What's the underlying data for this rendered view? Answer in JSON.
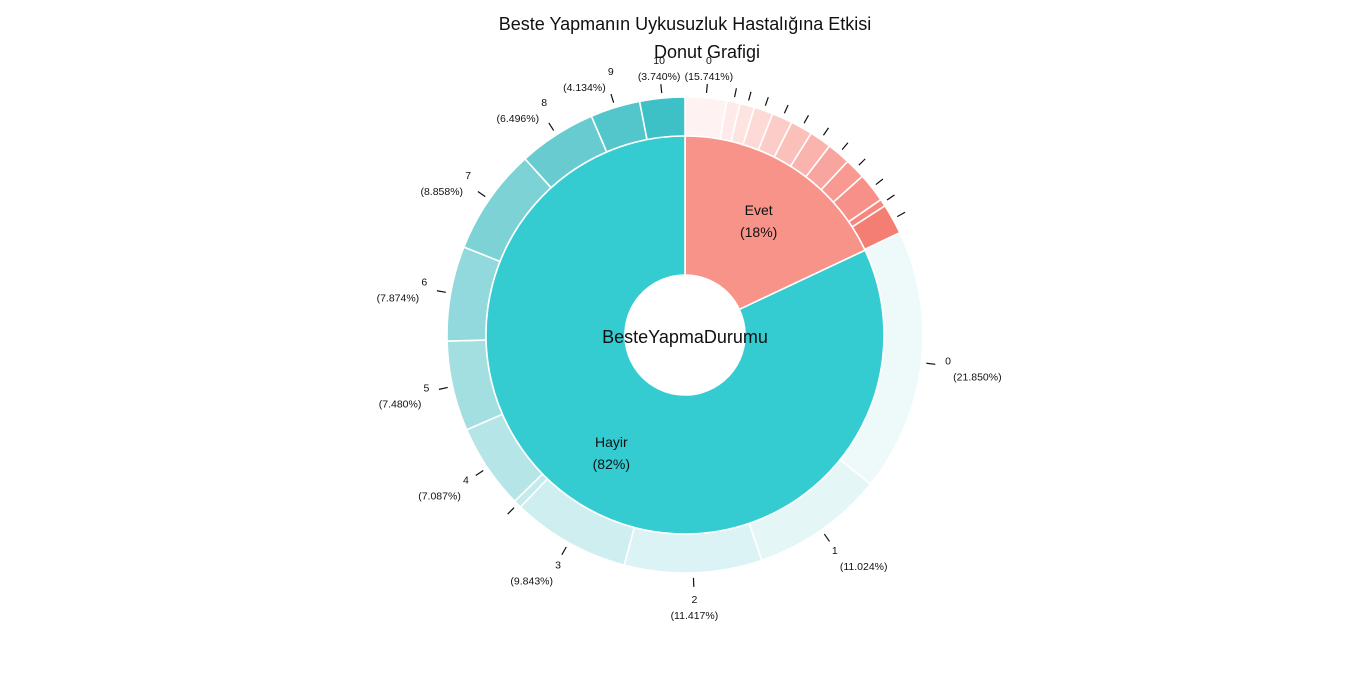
{
  "chart_data": {
    "type": "pie",
    "title": "Beste Yapmanın Uykusuzluk Hastalığına Etkisi",
    "subtitle": "Donut Grafigi",
    "center_label": "BesteYapmaDurumu",
    "inner_ring": [
      {
        "name": "Evet",
        "percent_label": "(18%)",
        "value": 18,
        "color": "#F8938A"
      },
      {
        "name": "Hayir",
        "percent_label": "(82%)",
        "value": 82,
        "color": "#34CCD1"
      }
    ],
    "outer_ring": [
      {
        "group": "Evet",
        "label": "0",
        "percent_label": "(15.741%)",
        "value": 2.833,
        "color": "#FEF3F2"
      },
      {
        "group": "Evet",
        "label": "",
        "percent_label": "",
        "value": 0.9,
        "color": "#FEEBE9"
      },
      {
        "group": "Evet",
        "label": "",
        "percent_label": "",
        "value": 1.0,
        "color": "#FEE4E1"
      },
      {
        "group": "Evet",
        "label": "",
        "percent_label": "",
        "value": 1.3,
        "color": "#FDDAD6"
      },
      {
        "group": "Evet",
        "label": "",
        "percent_label": "",
        "value": 1.4,
        "color": "#FCCDC8"
      },
      {
        "group": "Evet",
        "label": "",
        "percent_label": "",
        "value": 1.5,
        "color": "#FBC0BA"
      },
      {
        "group": "Evet",
        "label": "",
        "percent_label": "",
        "value": 1.5,
        "color": "#FAB3AD"
      },
      {
        "group": "Evet",
        "label": "",
        "percent_label": "",
        "value": 1.6,
        "color": "#F9A59F"
      },
      {
        "group": "Evet",
        "label": "",
        "percent_label": "",
        "value": 1.4,
        "color": "#F99A92"
      },
      {
        "group": "Evet",
        "label": "",
        "percent_label": "",
        "value": 2.0,
        "color": "#F79088"
      },
      {
        "group": "Evet",
        "label": "",
        "percent_label": "",
        "value": 0.5,
        "color": "#F6877E"
      },
      {
        "group": "Evet",
        "label": "",
        "percent_label": "",
        "value": 2.067,
        "color": "#F47E74"
      },
      {
        "group": "Hayir",
        "label": "0",
        "percent_label": "(21.850%)",
        "value": 17.917,
        "color": "#EEF9FA"
      },
      {
        "group": "Hayir",
        "label": "1",
        "percent_label": "(11.024%)",
        "value": 9.04,
        "color": "#E5F6F7"
      },
      {
        "group": "Hayir",
        "label": "2",
        "percent_label": "(11.417%)",
        "value": 9.362,
        "color": "#DBF3F4"
      },
      {
        "group": "Hayir",
        "label": "3",
        "percent_label": "(9.843%)",
        "value": 8.071,
        "color": "#CFEEF0"
      },
      {
        "group": "Hayir",
        "label": "",
        "percent_label": "",
        "value": 0.55,
        "color": "#C3EAEC"
      },
      {
        "group": "Hayir",
        "label": "4",
        "percent_label": "(7.087%)",
        "value": 5.811,
        "color": "#B6E5E8"
      },
      {
        "group": "Hayir",
        "label": "5",
        "percent_label": "(7.480%)",
        "value": 6.134,
        "color": "#A3DEE1"
      },
      {
        "group": "Hayir",
        "label": "6",
        "percent_label": "(7.874%)",
        "value": 6.457,
        "color": "#91D9DC"
      },
      {
        "group": "Hayir",
        "label": "7",
        "percent_label": "(8.858%)",
        "value": 7.264,
        "color": "#7CD2D5"
      },
      {
        "group": "Hayir",
        "label": "8",
        "percent_label": "(6.496%)",
        "value": 5.327,
        "color": "#67CBCF"
      },
      {
        "group": "Hayir",
        "label": "9",
        "percent_label": "(4.134%)",
        "value": 3.39,
        "color": "#52C6CA"
      },
      {
        "group": "Hayir",
        "label": "10",
        "percent_label": "(3.740%)",
        "value": 3.067,
        "color": "#3DC1C6"
      }
    ]
  }
}
